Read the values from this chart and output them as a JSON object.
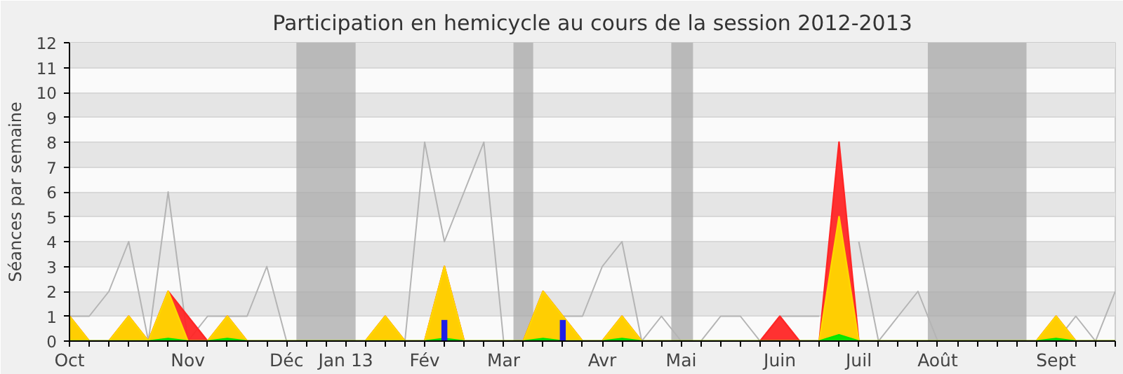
{
  "chart_data": {
    "type": "area",
    "title": "Participation en hemicycle au cours de la session 2012-2013",
    "ylabel": "Séances par semaine",
    "categories": [
      "Oct",
      null,
      null,
      null,
      null,
      null,
      "Nov",
      null,
      null,
      null,
      null,
      "Déc",
      null,
      null,
      "Jan 13",
      null,
      null,
      null,
      "Fév",
      null,
      null,
      null,
      "Mar",
      null,
      null,
      null,
      null,
      "Avr",
      null,
      null,
      null,
      "Mai",
      null,
      null,
      null,
      null,
      "Juin",
      null,
      null,
      null,
      "Juil",
      null,
      null,
      null,
      "Août",
      null,
      null,
      null,
      null,
      null,
      "Sept",
      null,
      null,
      null
    ],
    "series": [
      {
        "type": "line",
        "color": "#b4b4b4",
        "values": [
          1,
          1,
          2,
          4,
          0,
          6,
          0,
          1,
          1,
          1,
          3,
          0,
          null,
          null,
          null,
          0,
          0,
          0,
          8,
          4,
          6,
          8,
          0,
          0,
          0,
          1,
          1,
          3,
          4,
          0,
          1,
          0,
          0,
          1,
          1,
          0,
          1,
          1,
          1,
          null,
          4,
          0,
          1,
          2,
          0,
          null,
          null,
          null,
          null,
          0,
          0,
          1,
          0,
          2
        ]
      },
      {
        "color": "#ff2626",
        "values": [
          1,
          0,
          0,
          1,
          0,
          2,
          1,
          0,
          1,
          0,
          0,
          0,
          0,
          0,
          0,
          0,
          1,
          0,
          0,
          3,
          0,
          0,
          0,
          0,
          2,
          1,
          0,
          0,
          1,
          0,
          0,
          0,
          0,
          0,
          0,
          0,
          1,
          0,
          0,
          8,
          0,
          0,
          0,
          0,
          0,
          0,
          0,
          0,
          0,
          0,
          1,
          0,
          0,
          0
        ]
      },
      {
        "color": "#ffd700",
        "values": [
          1,
          0,
          0,
          1,
          0,
          2,
          0,
          0,
          1,
          0,
          0,
          0,
          0,
          0,
          0,
          0,
          1,
          0,
          0,
          3,
          0,
          0,
          0,
          0,
          2,
          1,
          0,
          0,
          1,
          0,
          0,
          0,
          0,
          0,
          0,
          0,
          0,
          0,
          0,
          5,
          0,
          0,
          0,
          0,
          0,
          0,
          0,
          0,
          0,
          0,
          1,
          0,
          0,
          0
        ]
      },
      {
        "color": "#00e600",
        "values": [
          0,
          0,
          0,
          0,
          0,
          0.1,
          0,
          0,
          0.1,
          0,
          0,
          0,
          0,
          0,
          0,
          0,
          0,
          0,
          0,
          0.1,
          0,
          0,
          0,
          0,
          0.1,
          0,
          0,
          0,
          0.1,
          0,
          0,
          0,
          0,
          0,
          0,
          0,
          0,
          0,
          0,
          0.25,
          0,
          0,
          0,
          0,
          0,
          0,
          0,
          0,
          0,
          0,
          0.1,
          0,
          0,
          0
        ]
      },
      {
        "type": "bar",
        "color": "#1e1ee6",
        "values": [
          null,
          null,
          null,
          null,
          null,
          null,
          null,
          null,
          null,
          null,
          null,
          null,
          null,
          null,
          null,
          null,
          null,
          null,
          null,
          0.85,
          null,
          null,
          null,
          null,
          null,
          0.85,
          null,
          null,
          null,
          null,
          null,
          null,
          null,
          null,
          null,
          null,
          null,
          null,
          null,
          null,
          null,
          null,
          null,
          null,
          null,
          null,
          null,
          null,
          null,
          null,
          null,
          null,
          null,
          null
        ]
      }
    ],
    "ylim": [
      0,
      12
    ],
    "yticks": [
      0,
      1,
      2,
      3,
      4,
      5,
      6,
      7,
      8,
      9,
      10,
      11,
      12
    ],
    "grid": "y"
  }
}
